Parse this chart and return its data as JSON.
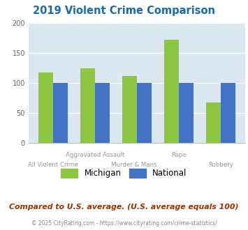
{
  "title": "2019 Violent Crime Comparison",
  "categories": [
    "All Violent Crime",
    "Aggravated Assault",
    "Murder & Mans...",
    "Rape",
    "Robbery"
  ],
  "top_xlabels": [
    "",
    "Aggravated Assault",
    "",
    "Rape",
    ""
  ],
  "bot_xlabels": [
    "All Violent Crime",
    "",
    "Murder & Mans...",
    "",
    "Robbery"
  ],
  "michigan_values": [
    117,
    124,
    112,
    172,
    67
  ],
  "national_values": [
    100,
    100,
    100,
    100,
    100
  ],
  "michigan_color": "#8dc63f",
  "national_color": "#4472c4",
  "ylim": [
    0,
    200
  ],
  "yticks": [
    0,
    50,
    100,
    150,
    200
  ],
  "plot_bg": "#dce8ef",
  "title_color": "#1a6aaa",
  "subtitle": "Compared to U.S. average. (U.S. average equals 100)",
  "subtitle_color": "#993300",
  "footer": "© 2025 CityRating.com - https://www.cityrating.com/crime-statistics/",
  "footer_color": "#888888",
  "legend_michigan": "Michigan",
  "legend_national": "National",
  "bar_width": 0.35,
  "xlabel_color": "#999999",
  "ylabel_color": "#666666"
}
